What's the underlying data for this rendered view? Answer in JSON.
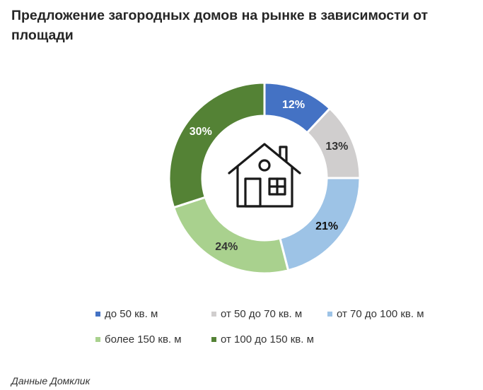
{
  "title": "Предложение загородных домов на рынке в зависимости от площади",
  "source": "Данные Домклик",
  "chart_data": {
    "type": "pie",
    "variant": "donut",
    "center_icon": "house-icon",
    "legend_placement": "bottom",
    "slices": [
      {
        "label": "до 50 кв. м",
        "value": 12,
        "display": "12%",
        "color": "#4472C4",
        "label_color": "#ffffff"
      },
      {
        "label": "от 50 до 70 кв. м",
        "value": 13,
        "display": "13%",
        "color": "#D0CECE",
        "label_color": "#333333"
      },
      {
        "label": "от 70 до 100 кв. м",
        "value": 21,
        "display": "21%",
        "color": "#9DC3E6",
        "label_color": "#111111"
      },
      {
        "label": "более 150 кв. м",
        "value": 24,
        "display": "24%",
        "color": "#A9D18E",
        "label_color": "#333333"
      },
      {
        "label": "от 100 до 150 кв. м",
        "value": 30,
        "display": "30%",
        "color": "#548235",
        "label_color": "#ffffff"
      }
    ]
  }
}
